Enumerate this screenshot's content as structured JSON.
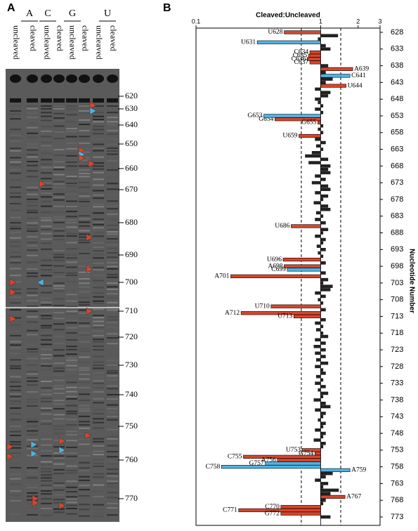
{
  "panel_labels": [
    "A",
    "B"
  ],
  "gel": {
    "lanes": [
      "A",
      "C",
      "G",
      "U"
    ],
    "sublanes": [
      "uncleaved",
      "cleaved",
      "uncleaved",
      "cleaved",
      "uncleaved",
      "cleaved",
      "uncleaved",
      "cleaved"
    ],
    "markers": [
      "620",
      "630",
      "640",
      "650",
      "660",
      "670",
      "680",
      "690",
      "700",
      "710",
      "720",
      "730",
      "740",
      "750",
      "760",
      "770"
    ]
  },
  "chart_data": {
    "type": "hbar",
    "title": "Cleaved:Uncleaved",
    "y_label": "Nucleotide Number",
    "xscale": "log",
    "xlim": [
      0.1,
      3
    ],
    "xticks": [
      0.1,
      1,
      2,
      3
    ],
    "ylim": [
      628,
      773
    ],
    "yticks": [
      628,
      633,
      638,
      643,
      648,
      653,
      658,
      663,
      668,
      673,
      678,
      683,
      688,
      693,
      698,
      703,
      708,
      713,
      718,
      723,
      728,
      733,
      738,
      743,
      748,
      753,
      758,
      763,
      768,
      773
    ],
    "reference_lines": [
      0.7,
      1.45
    ],
    "series": [
      {
        "color": "#222222",
        "positions": [
          629,
          630,
          632,
          633,
          638,
          640,
          642,
          643,
          645,
          646,
          647,
          648,
          649,
          650,
          651,
          652,
          656,
          657,
          658,
          660,
          661,
          662,
          663,
          664,
          665,
          666,
          667,
          668,
          669,
          670,
          671,
          672,
          673,
          674,
          675,
          676,
          677,
          678,
          679,
          680,
          681,
          682,
          683,
          684,
          685,
          687,
          688,
          689,
          690,
          691,
          692,
          693,
          694,
          695,
          697,
          700,
          702,
          703,
          704,
          705,
          706,
          707,
          708,
          709,
          711,
          714,
          715,
          716,
          717,
          718,
          719,
          720,
          721,
          722,
          723,
          724,
          725,
          726,
          727,
          728,
          729,
          730,
          731,
          732,
          733,
          734,
          735,
          736,
          737,
          738,
          739,
          740,
          741,
          742,
          743,
          744,
          745,
          746,
          747,
          748,
          749,
          750,
          751,
          752,
          760,
          761,
          762,
          763,
          764,
          765,
          766,
          768,
          769,
          773
        ],
        "values": [
          1.38,
          0.95,
          1.1,
          1.2,
          1.15,
          1.1,
          1.25,
          1.1,
          0.9,
          1.2,
          1.15,
          0.9,
          0.95,
          1.05,
          0.9,
          1.05,
          1.05,
          0.95,
          1.05,
          0.9,
          1.1,
          0.92,
          1.05,
          0.85,
          0.75,
          1.15,
          0.8,
          1.2,
          1.15,
          1.2,
          0.9,
          1.1,
          0.85,
          1.15,
          1.2,
          0.9,
          1.15,
          1.05,
          0.88,
          1.15,
          1.2,
          0.92,
          1.05,
          0.9,
          1.1,
          1.15,
          1.05,
          0.9,
          1.1,
          1.05,
          0.93,
          1.1,
          0.95,
          1.05,
          1.1,
          1.1,
          1.15,
          1.05,
          1.25,
          1.2,
          0.9,
          1.1,
          0.95,
          1.05,
          1.1,
          1.1,
          0.9,
          1.05,
          0.92,
          1.05,
          1.15,
          0.9,
          1.1,
          0.88,
          1.1,
          0.9,
          1.1,
          0.92,
          1.15,
          0.9,
          1.05,
          1.1,
          0.92,
          1.05,
          0.9,
          1.1,
          0.95,
          1.15,
          1.05,
          0.88,
          1.1,
          1.2,
          0.9,
          1.1,
          1.05,
          0.95,
          1.1,
          1.05,
          0.9,
          1.1,
          1.05,
          0.88,
          1.1,
          1.05,
          1.25,
          1.1,
          0.9,
          1.15,
          1.05,
          1.4,
          1.2,
          1.1,
          1.05,
          1.2
        ]
      },
      {
        "color": "#d9452b",
        "positions": [
          628,
          634,
          635,
          636,
          637,
          639,
          644,
          654,
          655,
          659,
          686,
          696,
          698,
          701,
          710,
          712,
          713,
          753,
          754,
          755,
          756,
          767,
          770,
          771,
          772
        ],
        "labels": [
          "U628",
          "C634",
          "C635",
          "C636",
          "C637",
          "A639",
          "U644",
          "G654",
          "G655",
          "U659",
          "U686",
          "U696",
          "A698",
          "A701",
          "U710",
          "A712",
          "U713",
          "U753",
          "G754",
          "C755",
          "A756",
          "A767",
          "C770",
          "C771",
          "G772"
        ],
        "values": [
          0.51,
          0.82,
          0.8,
          0.78,
          0.82,
          1.81,
          1.6,
          0.43,
          0.95,
          0.67,
          0.58,
          0.5,
          0.51,
          0.19,
          0.4,
          0.23,
          0.61,
          0.71,
          0.9,
          0.24,
          0.45,
          1.57,
          0.48,
          0.22,
          0.48
        ]
      },
      {
        "color": "#4fb3e3",
        "positions": [
          631,
          641,
          653,
          699,
          757,
          758,
          759
        ],
        "labels": [
          "U631",
          "C641",
          "G653",
          "C699",
          "G757",
          "C758",
          "A759"
        ],
        "values": [
          0.31,
          1.72,
          0.35,
          0.54,
          0.36,
          0.16,
          1.72
        ]
      }
    ]
  }
}
